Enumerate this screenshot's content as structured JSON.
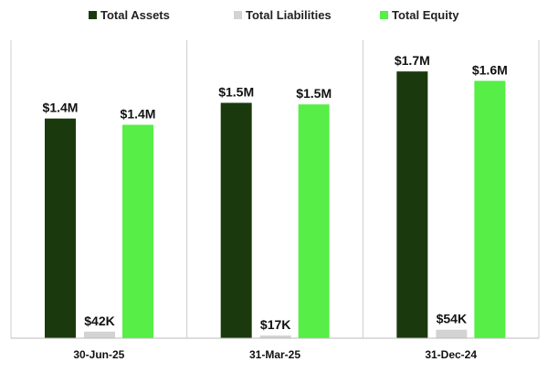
{
  "chart_data": {
    "type": "bar",
    "title": "",
    "xlabel": "",
    "ylabel": "",
    "ylim": [
      0,
      1800000
    ],
    "grid": false,
    "legend_position": "top",
    "categories": [
      "30-Jun-25",
      "31-Mar-25",
      "31-Dec-24"
    ],
    "series": [
      {
        "name": "Total Assets",
        "color": "#1a3a0d",
        "values": [
          1400000,
          1500000,
          1700000
        ],
        "labels": [
          "$1.4M",
          "$1.5M",
          "$1.7M"
        ]
      },
      {
        "name": "Total Liabilities",
        "color": "#d3d3d3",
        "values": [
          42000,
          17000,
          54000
        ],
        "labels": [
          "$42K",
          "$17K",
          "$54K"
        ]
      },
      {
        "name": "Total Equity",
        "color": "#56ee47",
        "values": [
          1360000,
          1490000,
          1640000
        ],
        "labels": [
          "$1.4M",
          "$1.5M",
          "$1.6M"
        ]
      }
    ]
  }
}
